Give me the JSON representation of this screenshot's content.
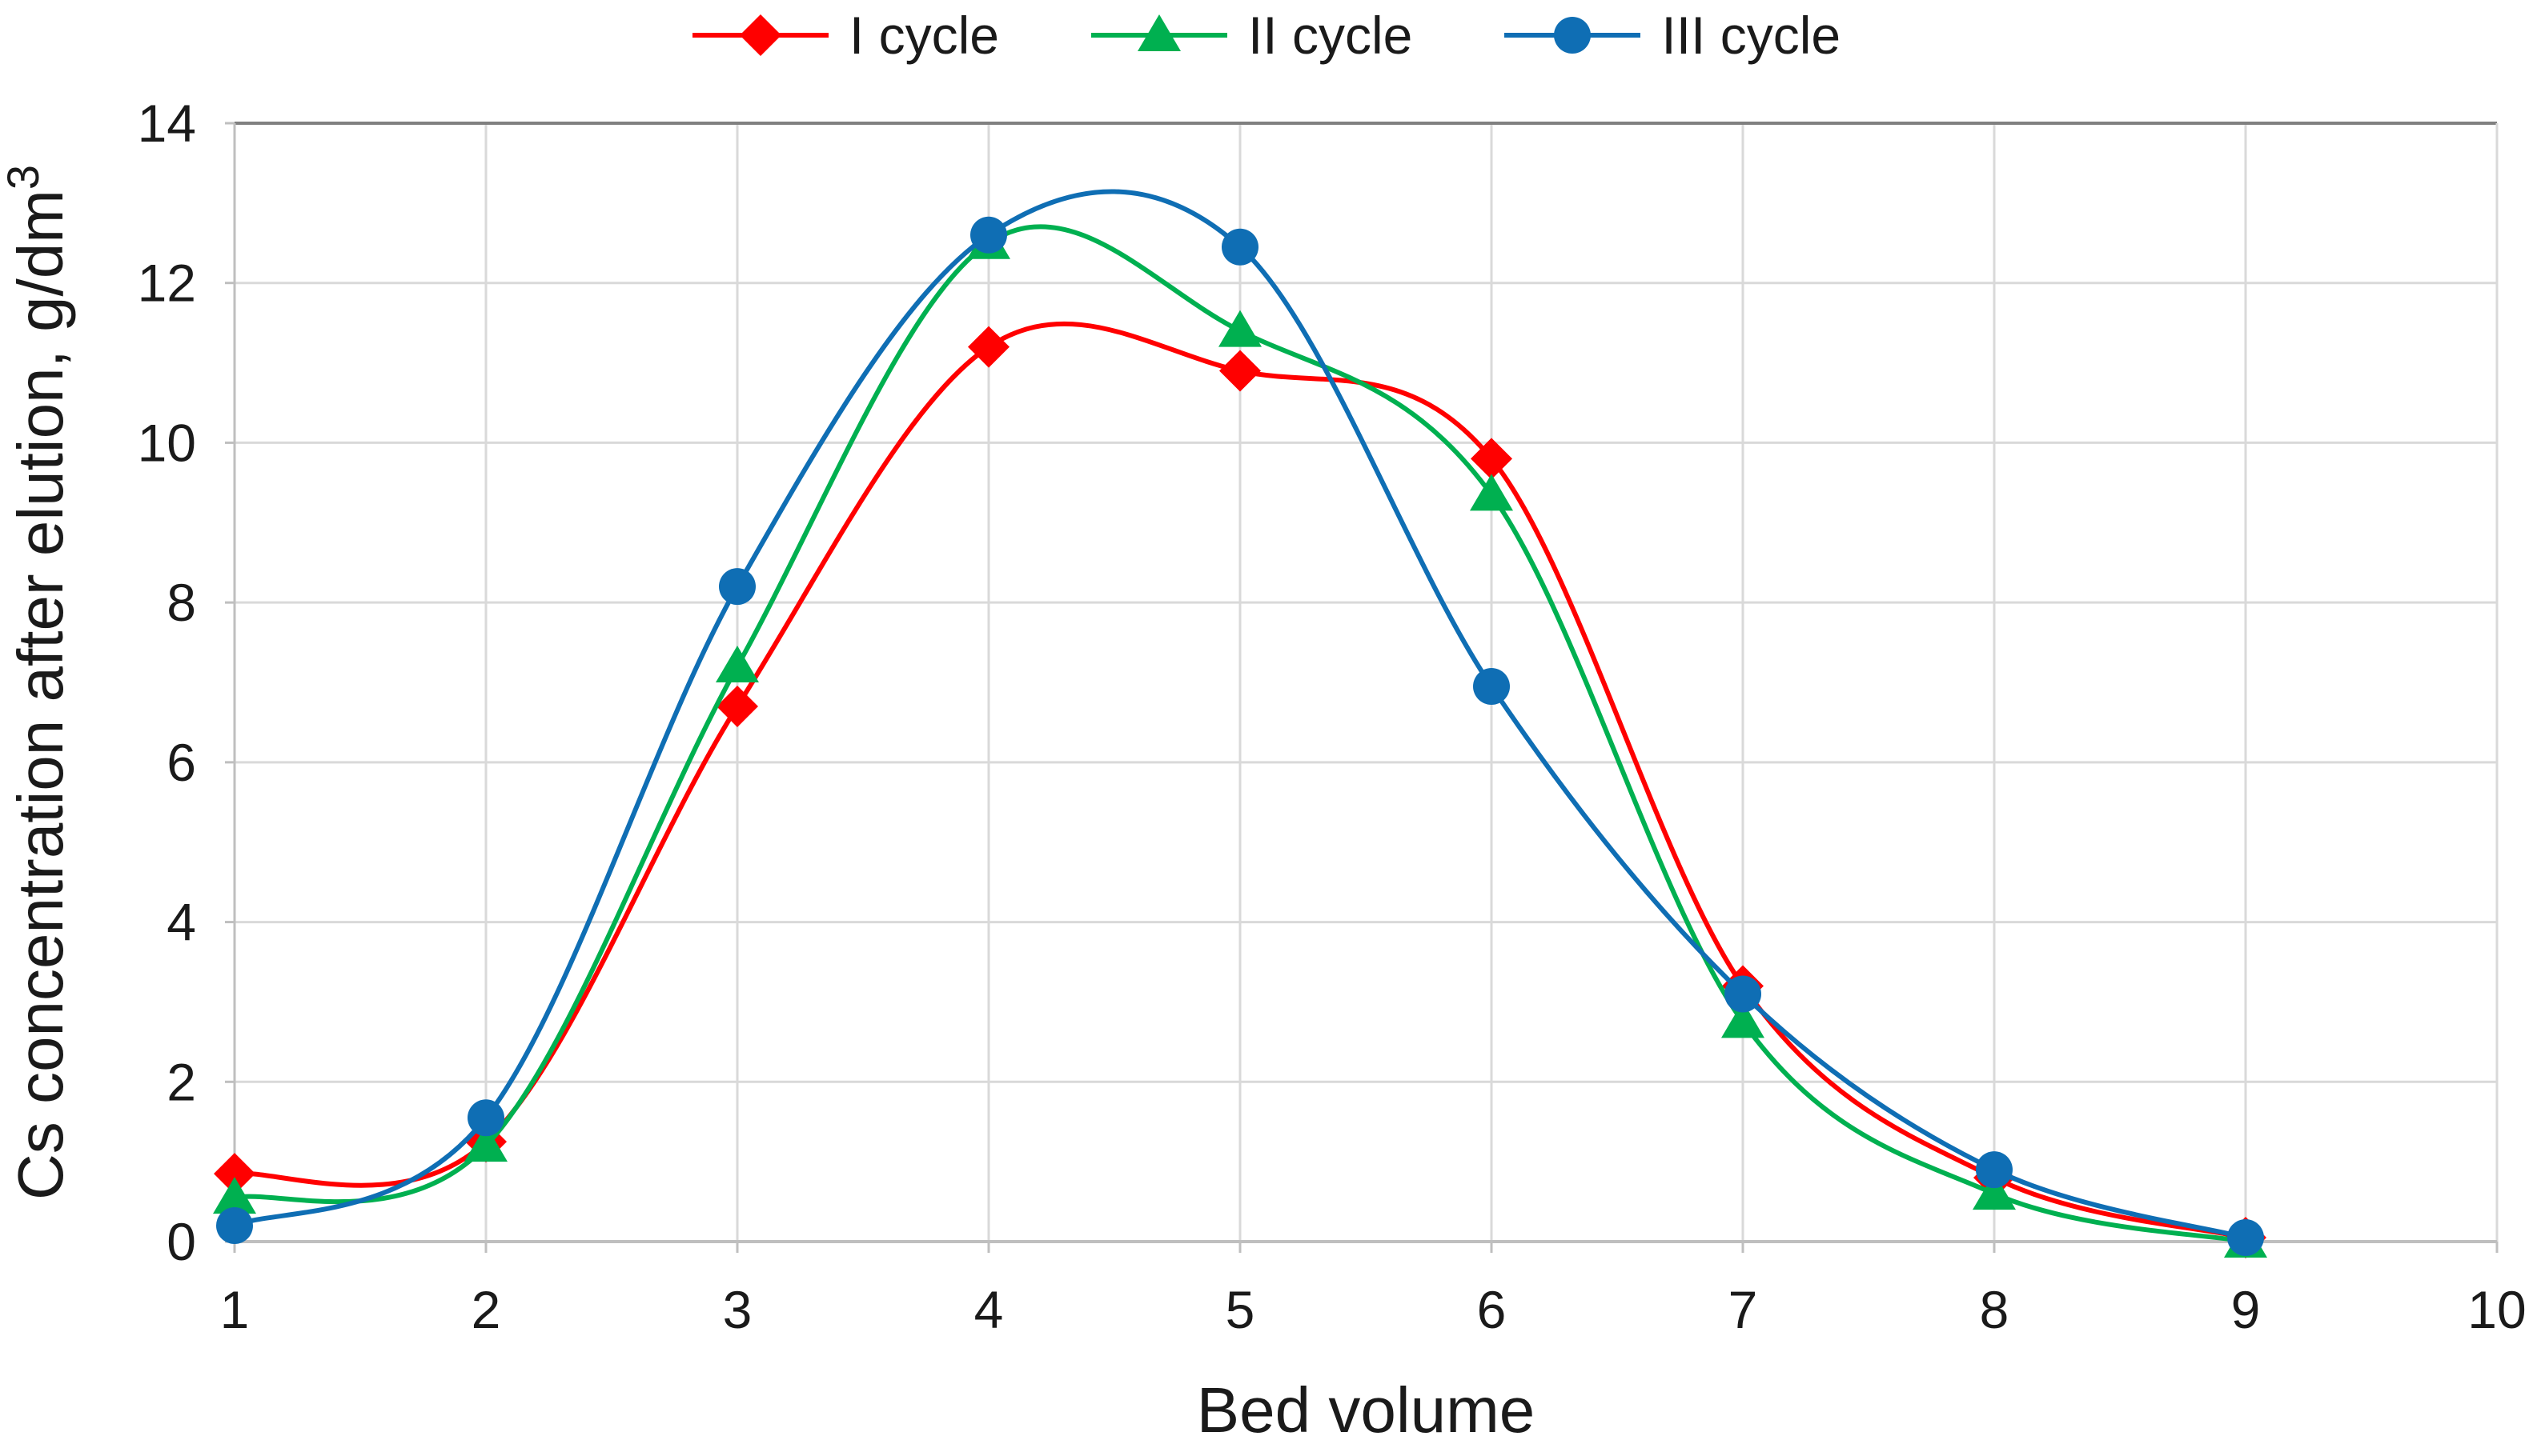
{
  "chart_data": {
    "type": "line",
    "line_style": "smooth",
    "title": "",
    "xlabel": "Bed volume",
    "ylabel": "Cs concentration after elution, g/dm³",
    "ylabel_main": "Cs concentration after elution, g/dm",
    "ylabel_superscript": "3",
    "x": [
      1,
      2,
      3,
      4,
      5,
      6,
      7,
      8,
      9
    ],
    "series": [
      {
        "name": "I cycle",
        "color": "#FF0000",
        "marker": "diamond",
        "values": [
          0.85,
          1.25,
          6.7,
          11.2,
          10.9,
          9.8,
          3.2,
          0.8,
          0.05
        ]
      },
      {
        "name": "II cycle",
        "color": "#00B050",
        "marker": "triangle",
        "values": [
          0.55,
          1.2,
          7.2,
          12.5,
          11.4,
          9.35,
          2.75,
          0.6,
          0.0
        ]
      },
      {
        "name": "III cycle",
        "color": "#0F6EB4",
        "marker": "circle",
        "values": [
          0.2,
          1.55,
          8.2,
          12.6,
          12.45,
          6.95,
          3.1,
          0.9,
          0.05
        ]
      }
    ],
    "xlim": [
      1,
      10
    ],
    "ylim": [
      0,
      14
    ],
    "x_ticks": [
      1,
      2,
      3,
      4,
      5,
      6,
      7,
      8,
      9,
      10
    ],
    "y_ticks": [
      0,
      2,
      4,
      6,
      8,
      10,
      12,
      14
    ],
    "grid": true,
    "legend_position": "top"
  },
  "style_colors": {
    "gridline": "#D9D9D9",
    "axis_line": "#BFBFBF",
    "top_border": "#808080",
    "right_border": "#D9D9D9",
    "tick_text": "#1a1a1a"
  }
}
